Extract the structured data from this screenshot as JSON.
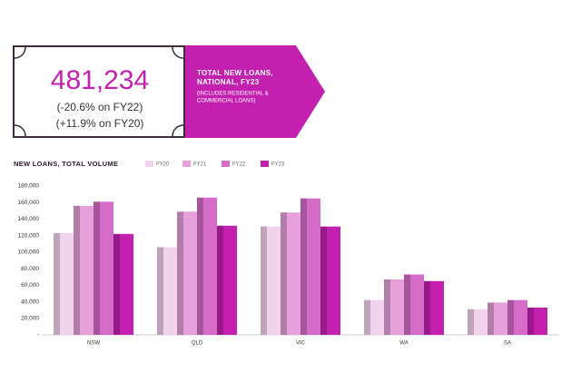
{
  "header": {
    "headline": "481,234",
    "change_lines": [
      "(-20.6% on FY22)",
      "(+11.9% on FY20)"
    ],
    "label_lines": [
      "TOTAL NEW LOANS,",
      "NATIONAL, FY23"
    ],
    "note_lines": [
      "(INCLUDES RESIDENTIAL &",
      "COMMERCIAL LOANS)"
    ]
  },
  "chart_data": {
    "type": "bar",
    "title": "NEW LOANS, TOTAL VOLUME",
    "categories": [
      "NSW",
      "QLD",
      "VIC",
      "WA",
      "SA"
    ],
    "series": [
      {
        "name": "FY20",
        "color": "#f2d3ee",
        "values": [
          123000,
          106000,
          131000,
          42000,
          31000
        ]
      },
      {
        "name": "FY21",
        "color": "#e6a1da",
        "values": [
          156000,
          149000,
          148000,
          67000,
          39000
        ]
      },
      {
        "name": "FY22",
        "color": "#d56cc8",
        "values": [
          161000,
          166000,
          165000,
          73000,
          42000
        ]
      },
      {
        "name": "FY23",
        "color": "#c320b0",
        "values": [
          122000,
          132000,
          131000,
          65000,
          33000
        ]
      }
    ],
    "ylim": [
      0,
      180000
    ],
    "yticks": [
      {
        "value": 0,
        "label": "-"
      },
      {
        "value": 20000,
        "label": "20,000"
      },
      {
        "value": 40000,
        "label": "40,000"
      },
      {
        "value": 60000,
        "label": "60,000"
      },
      {
        "value": 80000,
        "label": "80,000"
      },
      {
        "value": 100000,
        "label": "100,000"
      },
      {
        "value": 120000,
        "label": "120,000"
      },
      {
        "value": 140000,
        "label": "140,000"
      },
      {
        "value": 160000,
        "label": "160,000"
      },
      {
        "value": 180000,
        "label": "180,000"
      }
    ],
    "grid": false
  }
}
